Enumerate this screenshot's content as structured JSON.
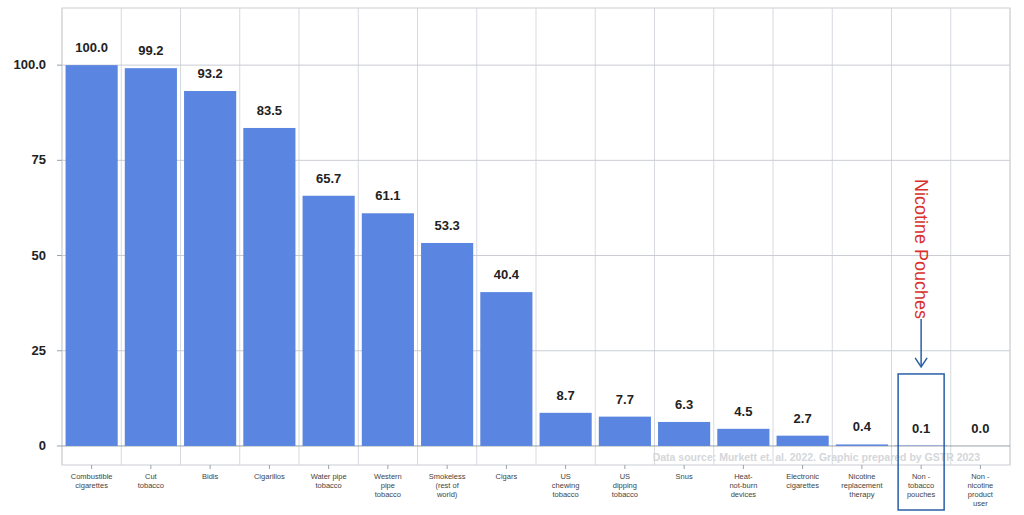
{
  "chart_data": {
    "type": "bar",
    "categories": [
      "Combustible\ncigarettes",
      "Cut\ntobacco",
      "Bidis",
      "Cigarillos",
      "Water pipe\ntobacco",
      "Western\npipe\ntobacco",
      "Smokeless\n(rest of\nworld)",
      "Cigars",
      "US\nchewing\ntobacco",
      "US\ndipping\ntobacco",
      "Snus",
      "Heat-\nnot-burn\ndevices",
      "Electronic\ncigarettes",
      "Nicotine\nreplacement\ntherapy",
      "Non -\ntobacco\npouches",
      "Non -\nnicotine\nproduct\nuser"
    ],
    "values": [
      100.0,
      99.2,
      93.2,
      83.5,
      65.7,
      61.1,
      53.3,
      40.4,
      8.7,
      7.7,
      6.3,
      4.5,
      2.7,
      0.4,
      0.1,
      0.0
    ],
    "value_labels": [
      "100.0",
      "99.2",
      "93.2",
      "83.5",
      "65.7",
      "61.1",
      "53.3",
      "40.4",
      "8.7",
      "7.7",
      "6.3",
      "4.5",
      "2.7",
      "0.4",
      "0.1",
      "0.0"
    ],
    "color": "#5a85e0",
    "ylim": [
      -5,
      115
    ],
    "yticks": [
      0,
      25,
      50,
      75,
      {
        "value": 100,
        "label": "100.0"
      }
    ],
    "grid": true,
    "data_labels": true,
    "annotation": {
      "text": "Nicotine Pouches",
      "category": "Non -\ntobacco\npouches"
    },
    "source": "Data source: Murkett et. al. 2022. Graphic prepared by GSTR 2023"
  }
}
